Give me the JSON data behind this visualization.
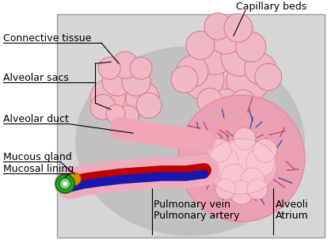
{
  "bg_color": "#ffffff",
  "labels": {
    "capillary_beds": "Capillary beds",
    "connective_tissue": "Connective tissue",
    "alveolar_sacs": "Alveolar sacs",
    "alveolar_duct": "Alveolar duct",
    "mucous_gland": "Mucous gland",
    "mucosal_lining": "Mucosal lining",
    "pulmonary_vein": "Pulmonary vein",
    "pulmonary_artery": "Pulmonary artery",
    "alveoli": "Alveoli",
    "atrium": "Atrium"
  },
  "colors": {
    "pink_light": "#f2afc0",
    "pink_mid": "#e8899a",
    "pink_sac": "#f0b8c5",
    "pink_sac_edge": "#d87888",
    "red_vessel": "#be0000",
    "blue_vessel": "#1818b0",
    "green_dark": "#006800",
    "green_mid": "#22a022",
    "orange": "#e08800",
    "panel_bg": "#d4d4d4",
    "shadow_gray": "#b8b8b8",
    "cap_pink": "#e89aaa",
    "cap_dark": "#c04060",
    "cap_blue": "#2840b0",
    "alveoli_pink": "#f5c0cc",
    "black": "#000000"
  }
}
